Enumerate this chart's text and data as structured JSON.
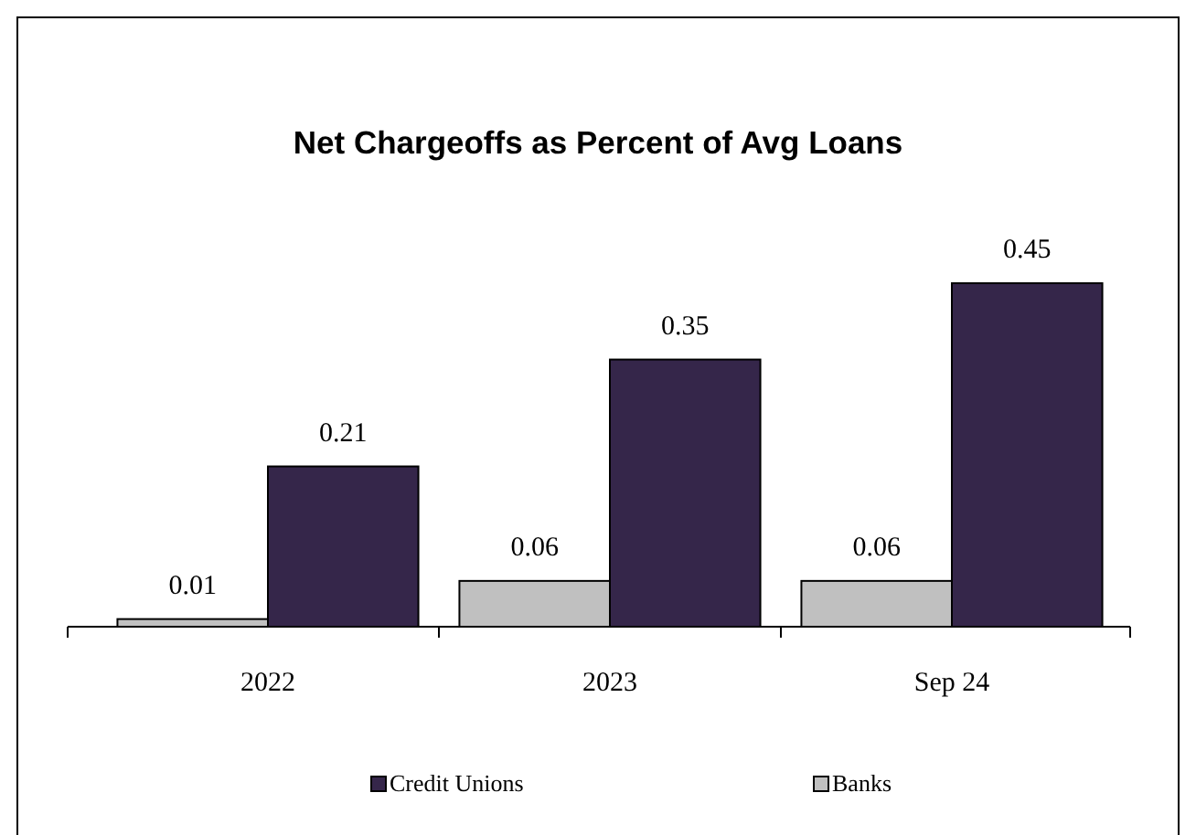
{
  "chart_data": {
    "type": "bar",
    "title": "Net Chargeoffs as Percent of Avg Loans",
    "categories": [
      "2022",
      "2023",
      "Sep 24"
    ],
    "series": [
      {
        "name": "Banks",
        "color": "#c0c0c0",
        "values": [
          0.01,
          0.06,
          0.06
        ]
      },
      {
        "name": "Credit Unions",
        "color": "#35264a",
        "values": [
          0.21,
          0.35,
          0.45
        ]
      }
    ],
    "data_labels": true,
    "legend": "bottom",
    "grid": false
  }
}
